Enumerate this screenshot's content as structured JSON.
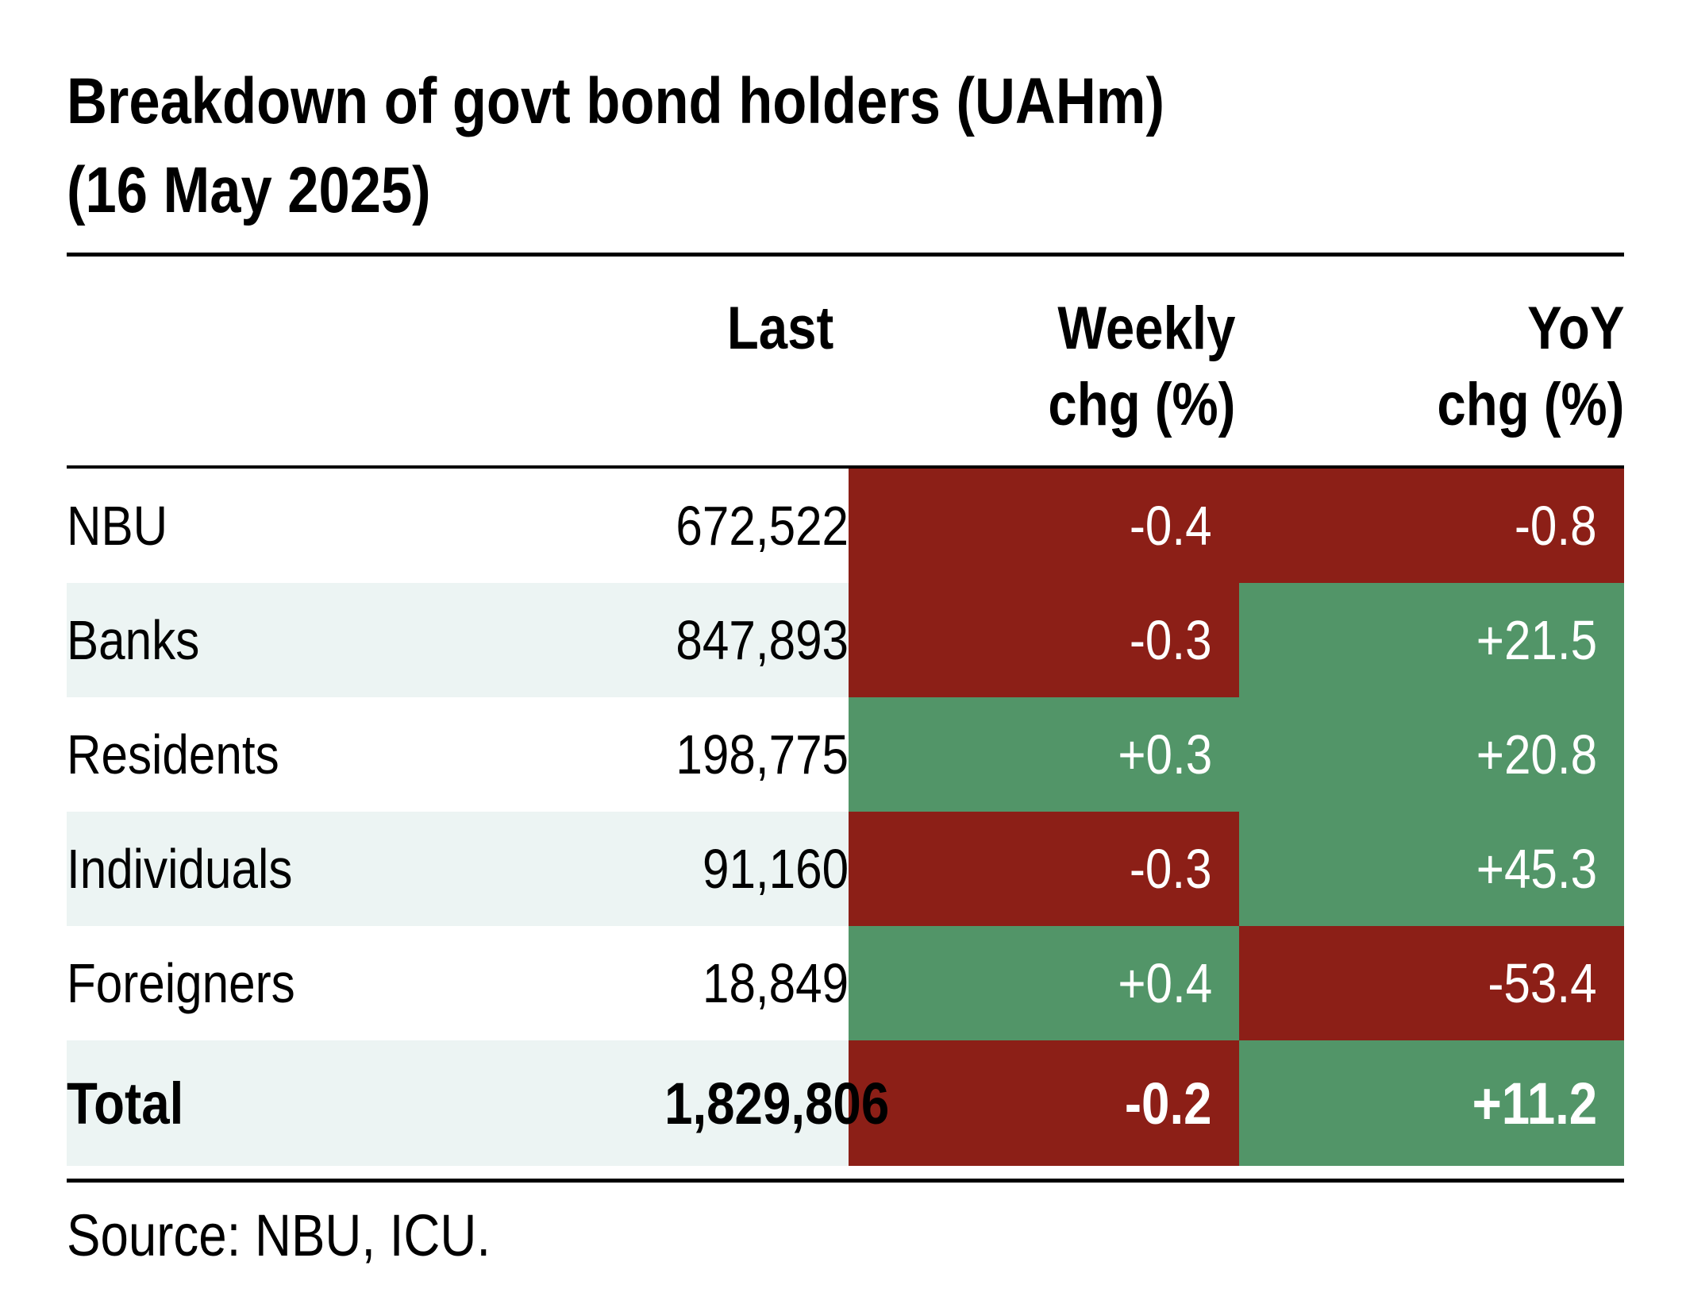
{
  "title_line1": "Breakdown of govt bond holders (UAHm)",
  "title_line2": "(16 May 2025)",
  "headers": {
    "last": "Last",
    "weekly_line1": "Weekly",
    "weekly_line2": "chg (%)",
    "yoy_line1": "YoY",
    "yoy_line2": "chg (%)"
  },
  "colors": {
    "negative": "#8c1f17",
    "positive": "#529568",
    "band": "#ecf4f3",
    "white": "#ffffff"
  },
  "rows": [
    {
      "label": "NBU",
      "last": "672,522",
      "weekly": "-0.4",
      "yoy": "-0.8"
    },
    {
      "label": "Banks",
      "last": "847,893",
      "weekly": "-0.3",
      "yoy": "+21.5"
    },
    {
      "label": "Residents",
      "last": "198,775",
      "weekly": "+0.3",
      "yoy": "+20.8"
    },
    {
      "label": "Individuals",
      "last": "91,160",
      "weekly": "-0.3",
      "yoy": "+45.3"
    },
    {
      "label": "Foreigners",
      "last": "18,849",
      "weekly": "+0.4",
      "yoy": "-53.4"
    },
    {
      "label": "Total",
      "last": "1,829,806",
      "weekly": "-0.2",
      "yoy": "+11.2"
    }
  ],
  "source": "Source: NBU, ICU.",
  "chart_data": {
    "type": "table",
    "title": "Breakdown of govt bond holders (UAHm) (16 May 2025)",
    "columns": [
      "",
      "Last",
      "Weekly chg (%)",
      "YoY chg (%)"
    ],
    "rows": [
      [
        "NBU",
        672522,
        -0.4,
        -0.8
      ],
      [
        "Banks",
        847893,
        -0.3,
        21.5
      ],
      [
        "Residents",
        198775,
        0.3,
        20.8
      ],
      [
        "Individuals",
        91160,
        -0.3,
        45.3
      ],
      [
        "Foreigners",
        18849,
        0.4,
        -53.4
      ],
      [
        "Total",
        1829806,
        -0.2,
        11.2
      ]
    ]
  }
}
